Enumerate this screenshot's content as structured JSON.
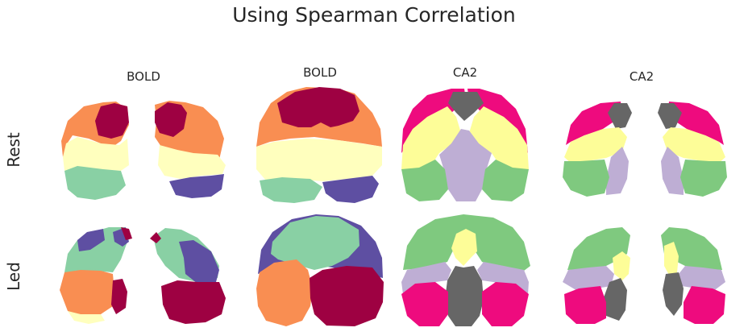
{
  "title": "Using Spearman Correlation",
  "columns": [
    "BOLD",
    "BOLD",
    "CA2",
    "CA2"
  ],
  "rows": [
    "Rest",
    "Led"
  ],
  "colors": {
    "dark_red": "#9e0142",
    "orange": "#f98e52",
    "light_yellow": "#ffffbe",
    "teal_green": "#89d0a4",
    "purple": "#5e4fa2",
    "magenta": "#ee0b7e",
    "gray": "#666666",
    "yellow": "#fdfd98",
    "lavender": "#beaed4",
    "green": "#7fc97f"
  }
}
